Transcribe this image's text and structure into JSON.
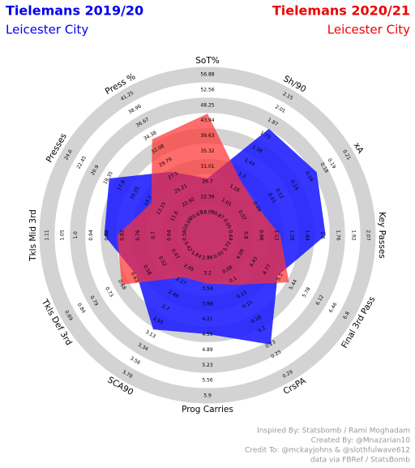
{
  "chart_data": {
    "type": "radar",
    "series": [
      {
        "name": "Tielemans 2019/20",
        "subtitle": "Leicester City",
        "color": "#1a1aff",
        "values": [
          27.7,
          1.8,
          0.17,
          1.63,
          5.04,
          0.23,
          4.54,
          3.05,
          0.62,
          0.89,
          19.24,
          28.2
        ]
      },
      {
        "name": "Tielemans 2020/21",
        "subtitle": "Leicester City",
        "color": "#ff3333",
        "values": [
          45.9,
          1.26,
          0.09,
          1.16,
          5.33,
          0.11,
          3.43,
          2.2,
          0.68,
          0.84,
          14.3,
          33.8
        ]
      }
    ],
    "axes": [
      {
        "name": "SoT%",
        "ticks": [
          18.08,
          22.39,
          26.7,
          31.01,
          35.32,
          39.63,
          43.94,
          48.25,
          52.56,
          56.88
        ]
      },
      {
        "name": "Sh/90",
        "ticks": [
          0.87,
          1.01,
          1.16,
          1.3,
          1.44,
          1.58,
          1.73,
          1.87,
          2.01,
          2.15
        ]
      },
      {
        "name": "xA",
        "ticks": [
          0.05,
          0.07,
          0.09,
          0.11,
          0.12,
          0.14,
          0.16,
          0.18,
          0.19,
          0.21
        ]
      },
      {
        "name": "Key Passes",
        "ticks": [
          0.64,
          0.8,
          0.96,
          1.12,
          1.28,
          1.44,
          1.6,
          1.76,
          1.92,
          2.07
        ]
      },
      {
        "name": "Final 3rd Pass",
        "ticks": [
          3.75,
          4.09,
          4.43,
          4.77,
          5.1,
          5.44,
          5.78,
          6.12,
          6.46,
          6.8
        ]
      },
      {
        "name": "CrsPA",
        "ticks": [
          0.05,
          0.08,
          0.1,
          0.13,
          0.15,
          0.18,
          0.2,
          0.23,
          0.25,
          0.29
        ]
      },
      {
        "name": "Prog Carries",
        "ticks": [
          2.86,
          3.2,
          3.54,
          3.88,
          4.21,
          4.55,
          4.89,
          5.23,
          5.56,
          5.9
        ]
      },
      {
        "name": "SCA90",
        "ticks": [
          1.84,
          2.05,
          2.27,
          2.48,
          2.7,
          2.91,
          3.13,
          3.34,
          3.56,
          3.78
        ]
      },
      {
        "name": "Tkls Def 3rd",
        "ticks": [
          0.42,
          0.47,
          0.52,
          0.58,
          0.63,
          0.68,
          0.73,
          0.79,
          0.84,
          0.89
        ]
      },
      {
        "name": "Tkls Mid 3rd",
        "ticks": [
          0.58,
          0.64,
          0.7,
          0.76,
          0.82,
          0.88,
          0.94,
          {
            "value": 1,
            "label": "1.0"
          },
          1.05,
          1.11
        ]
      },
      {
        "name": "Presses",
        "ticks": [
          10.05,
          11.6,
          13.15,
          14.7,
          16.25,
          17.8,
          19.35,
          20.9,
          22.45,
          {
            "value": 24,
            "label": "24.0"
          }
        ]
      },
      {
        "name": "Press %",
        "ticks": [
          20.63,
          22.92,
          25.21,
          27.5,
          29.79,
          32.08,
          34.38,
          36.67,
          38.96,
          41.25
        ]
      }
    ],
    "credits": [
      "Inspired By: Statsbomb / Rami Moghadam",
      "Created By: @Mnazarian10",
      "Credit To: @mckayjohns & @slothfulwave612",
      "data via FBRef / StatsBomb"
    ]
  }
}
